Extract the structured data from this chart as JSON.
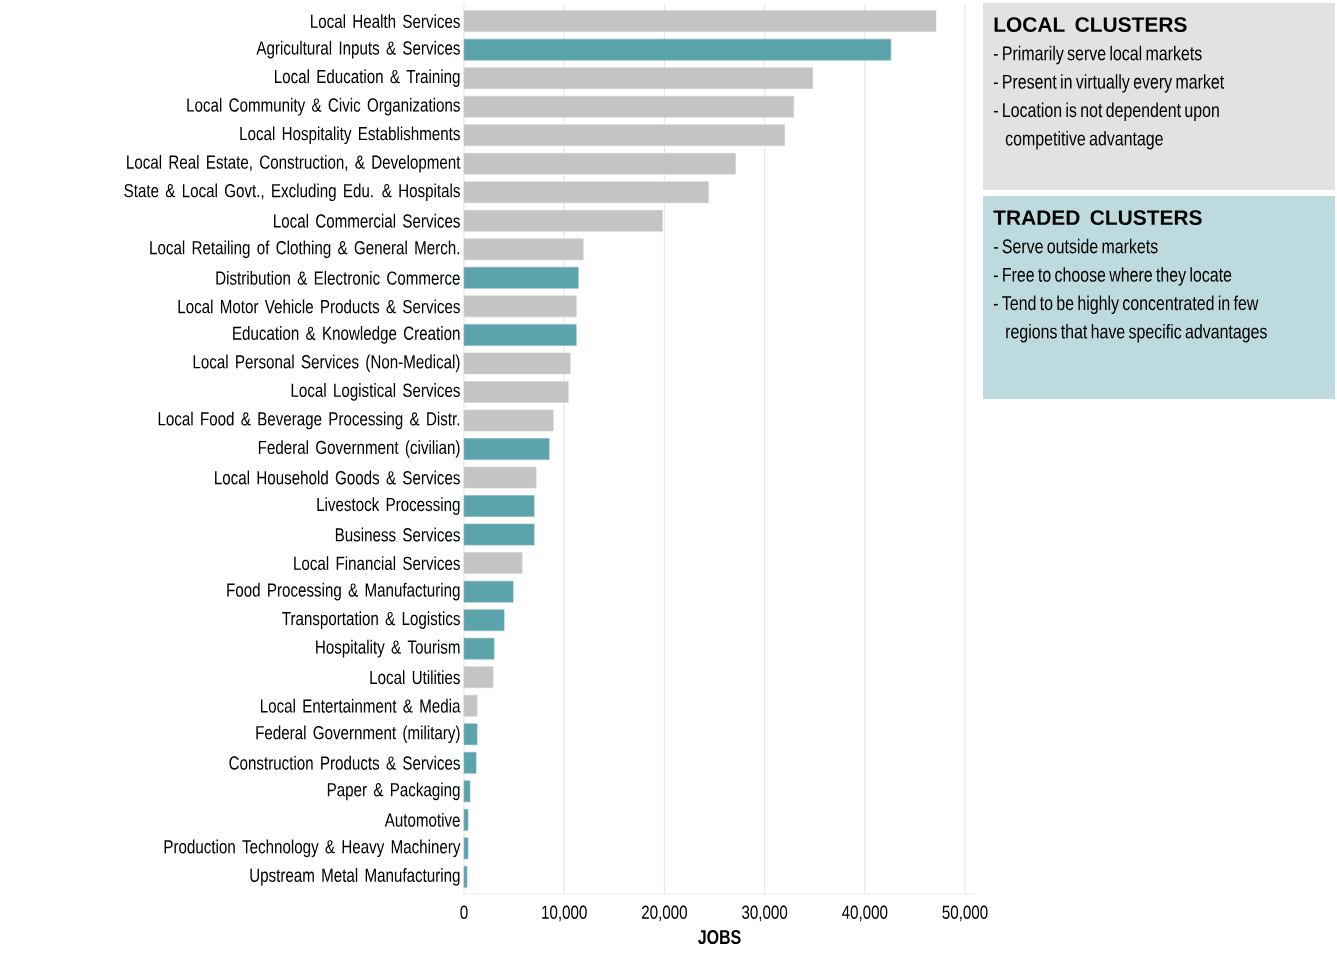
{
  "chart_data": [
    {
      "type": "bar",
      "orientation": "horizontal",
      "xlabel": "JOBS",
      "categories": [
        "Local Health Services",
        "Agricultural Inputs & Services",
        "Local Education & Training",
        "Local Community & Civic Organizations",
        "Local Hospitality Establishments",
        "Local Real Estate, Construction, & Development",
        "State & Local Govt., Excluding Edu. & Hospitals",
        "Local Commercial Services",
        "Local Retailing of Clothing & General Merch.",
        "Distribution & Electronic Commerce",
        "Local Motor Vehicle Products & Services",
        "Education & Knowledge Creation",
        "Local Personal Services (Non-Medical)",
        "Local Logistical Services",
        "Local Food & Beverage Processing & Distr.",
        "Federal Government (civilian)",
        "Local Household Goods & Services",
        "Livestock Processing",
        "Business Services",
        "Local Financial Services",
        "Food Processing & Manufacturing",
        "Transportation & Logistics",
        "Hospitality & Tourism",
        "Local Utilities",
        "Local Entertainment & Media",
        "Federal Government (military)",
        "Construction Products & Services",
        "Paper & Packaging",
        "Automotive",
        "Production Technology & Heavy Machinery",
        "Upstream Metal Manufacturing"
      ],
      "values": [
        47100,
        42600,
        34800,
        32900,
        32000,
        27100,
        24400,
        19800,
        11900,
        11400,
        11200,
        11200,
        10600,
        10400,
        8900,
        8500,
        7200,
        7000,
        7000,
        5800,
        4900,
        4000,
        3000,
        2900,
        1300,
        1300,
        1200,
        600,
        400,
        400,
        300
      ],
      "colors": [
        "#c4c4c4",
        "#5ba4ac",
        "#c4c4c4",
        "#c4c4c4",
        "#c4c4c4",
        "#c4c4c4",
        "#c4c4c4",
        "#c4c4c4",
        "#c4c4c4",
        "#5ba4ac",
        "#c4c4c4",
        "#5ba4ac",
        "#c4c4c4",
        "#c4c4c4",
        "#c4c4c4",
        "#5ba4ac",
        "#c4c4c4",
        "#5ba4ac",
        "#5ba4ac",
        "#c4c4c4",
        "#5ba4ac",
        "#5ba4ac",
        "#5ba4ac",
        "#c4c4c4",
        "#c4c4c4",
        "#5ba4ac",
        "#5ba4ac",
        "#5ba4ac",
        "#5ba4ac",
        "#5ba4ac",
        "#5ba4ac"
      ],
      "xlim": [
        0,
        51000
      ],
      "xticks": [
        0,
        {
          "value": 10000,
          "label": "10,000"
        },
        {
          "value": 20000,
          "label": "20,000"
        },
        {
          "value": 30000,
          "label": "30,000"
        },
        {
          "value": 40000,
          "label": "40,000"
        },
        {
          "value": 50000,
          "label": "50,000"
        }
      ],
      "grid": "x"
    },
    {
      "type": "other",
      "title": "LOCAL CLUSTERS",
      "color": "#e2e2e2",
      "annotations": [
        "- Primarily serve local markets",
        "- Present in virtually every market",
        "- Location is not dependent upon competitive advantage"
      ]
    },
    {
      "type": "other",
      "title": "TRADED CLUSTERS",
      "color": "#bddbde",
      "annotations": [
        "- Serve outside markets",
        "- Free to choose where they locate",
        "- Tend to be highly concentrated in few regions that have specific advantages"
      ]
    }
  ]
}
